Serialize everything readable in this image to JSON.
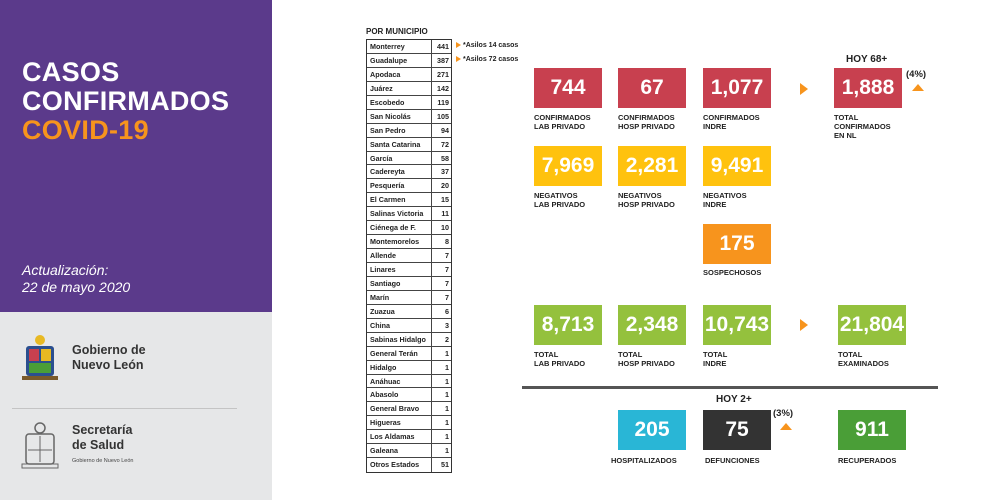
{
  "sidebar": {
    "title_line1": "CASOS",
    "title_line2": "CONFIRMADOS",
    "title_line3": "COVID-19",
    "update_label": "Actualización:",
    "update_date": "22 de mayo 2020",
    "gov_line1": "Gobierno de",
    "gov_line2": "Nuevo León",
    "health_line1": "Secretaría",
    "health_line2": "de Salud",
    "health_sub": "Gobierno de Nuevo León"
  },
  "municipios": {
    "title": "POR MUNICIPIO",
    "rows": [
      {
        "name": "Monterrey",
        "count": "441"
      },
      {
        "name": "Guadalupe",
        "count": "387"
      },
      {
        "name": "Apodaca",
        "count": "271"
      },
      {
        "name": "Juárez",
        "count": "142"
      },
      {
        "name": "Escobedo",
        "count": "119"
      },
      {
        "name": "San Nicolás",
        "count": "105"
      },
      {
        "name": "San Pedro",
        "count": "94"
      },
      {
        "name": "Santa Catarina",
        "count": "72"
      },
      {
        "name": "García",
        "count": "58"
      },
      {
        "name": "Cadereyta",
        "count": "37"
      },
      {
        "name": "Pesquería",
        "count": "20"
      },
      {
        "name": "El Carmen",
        "count": "15"
      },
      {
        "name": "Salinas Victoria",
        "count": "11"
      },
      {
        "name": "Ciénega de F.",
        "count": "10"
      },
      {
        "name": "Montemorelos",
        "count": "8"
      },
      {
        "name": "Allende",
        "count": "7"
      },
      {
        "name": "Linares",
        "count": "7"
      },
      {
        "name": "Santiago",
        "count": "7"
      },
      {
        "name": "Marín",
        "count": "7"
      },
      {
        "name": "Zuazua",
        "count": "6"
      },
      {
        "name": "China",
        "count": "3"
      },
      {
        "name": "Sabinas Hidalgo",
        "count": "2"
      },
      {
        "name": "General Terán",
        "count": "1"
      },
      {
        "name": "Hidalgo",
        "count": "1"
      },
      {
        "name": "Anáhuac",
        "count": "1"
      },
      {
        "name": "Abasolo",
        "count": "1"
      },
      {
        "name": "General Bravo",
        "count": "1"
      },
      {
        "name": "Higueras",
        "count": "1"
      },
      {
        "name": "Los Aldamas",
        "count": "1"
      },
      {
        "name": "Galeana",
        "count": "1"
      },
      {
        "name": "Otros Estados",
        "count": "51"
      }
    ],
    "note_monterrey": "*Asilos 14 casos",
    "note_guadalupe": "*Asilos 72 casos"
  },
  "confirmados": {
    "lab_privado": "744",
    "lab_privado_label": "CONFIRMADOS\nLAB PRIVADO",
    "hosp_privado": "67",
    "hosp_privado_label": "CONFIRMADOS\nHOSP PRIVADO",
    "indre": "1,077",
    "indre_label": "CONFIRMADOS\nINDRE",
    "hoy": "HOY 68+",
    "pct": "(4%)",
    "total": "1,888",
    "total_label": "TOTAL\nCONFIRMADOS\nEN NL"
  },
  "negativos": {
    "lab_privado": "7,969",
    "lab_privado_label": "NEGATIVOS\nLAB PRIVADO",
    "hosp_privado": "2,281",
    "hosp_privado_label": "NEGATIVOS\nHOSP PRIVADO",
    "indre": "9,491",
    "indre_label": "NEGATIVOS\nINDRE"
  },
  "sospechosos": {
    "value": "175",
    "label": "SOSPECHOSOS"
  },
  "totales": {
    "lab_privado": "8,713",
    "lab_privado_label": "TOTAL\nLAB PRIVADO",
    "hosp_privado": "2,348",
    "hosp_privado_label": "TOTAL\nHOSP PRIVADO",
    "indre": "10,743",
    "indre_label": "TOTAL\nINDRE",
    "examinados": "21,804",
    "examinados_label": "TOTAL\nEXAMINADOS"
  },
  "outcomes": {
    "hospitalizados": "205",
    "hospitalizados_label": "HOSPITALIZADOS",
    "hoy": "HOY 2+",
    "pct": "(3%)",
    "defunciones": "75",
    "defunciones_label": "DEFUNCIONES",
    "recuperados": "911",
    "recuperados_label": "RECUPERADOS"
  },
  "colors": {
    "purple": "#5b3a8b",
    "orange": "#f7941d",
    "red": "#c8404f",
    "yellow": "#ffc20e",
    "green": "#94c13d",
    "dark_green": "#4a9e37",
    "cyan": "#29b6d6",
    "dark": "#333333"
  }
}
